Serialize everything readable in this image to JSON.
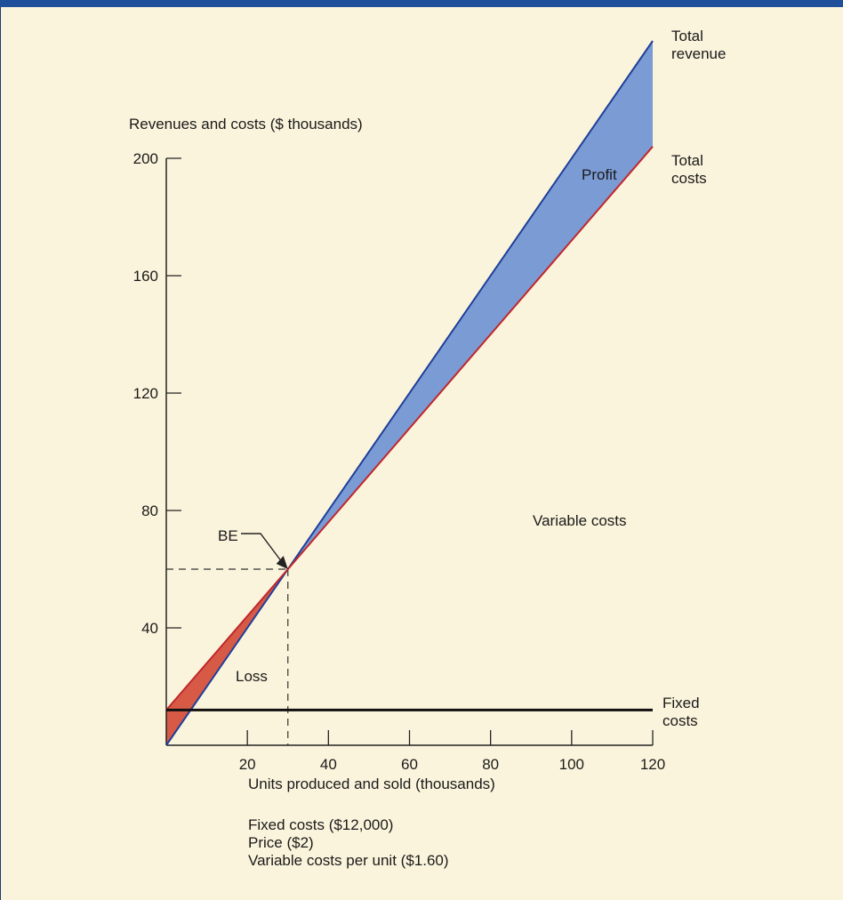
{
  "chart_data": {
    "type": "line",
    "xlabel": "Units produced and sold (thousands)",
    "ylabel": "Revenues and costs ($ thousands)",
    "xlim": [
      0,
      120
    ],
    "ylim": [
      0,
      200
    ],
    "x_ticks": [
      20,
      40,
      60,
      80,
      100,
      120
    ],
    "y_ticks": [
      40,
      80,
      120,
      160,
      200
    ],
    "series": [
      {
        "name": "Total revenue",
        "label_lines": [
          "Total",
          "revenue"
        ],
        "x": [
          0,
          120
        ],
        "y": [
          0,
          240
        ],
        "color": "#1f3f99"
      },
      {
        "name": "Total costs",
        "label_lines": [
          "Total",
          "costs"
        ],
        "x": [
          0,
          120
        ],
        "y": [
          12,
          204
        ],
        "color": "#c0272d"
      },
      {
        "name": "Fixed costs",
        "label_lines": [
          "Fixed",
          "costs"
        ],
        "x": [
          0,
          120
        ],
        "y": [
          12,
          12
        ],
        "color": "#111111"
      }
    ],
    "break_even": {
      "label": "BE",
      "x": 30,
      "y": 60
    },
    "regions": {
      "profit": {
        "label": "Profit",
        "color": "#7b9bd4"
      },
      "loss": {
        "label": "Loss",
        "color": "#d65a45"
      },
      "variable": {
        "label": "Variable costs"
      }
    },
    "notes": [
      "Fixed costs ($12,000)",
      "Price ($2)",
      "Variable costs per unit ($1.60)"
    ]
  }
}
